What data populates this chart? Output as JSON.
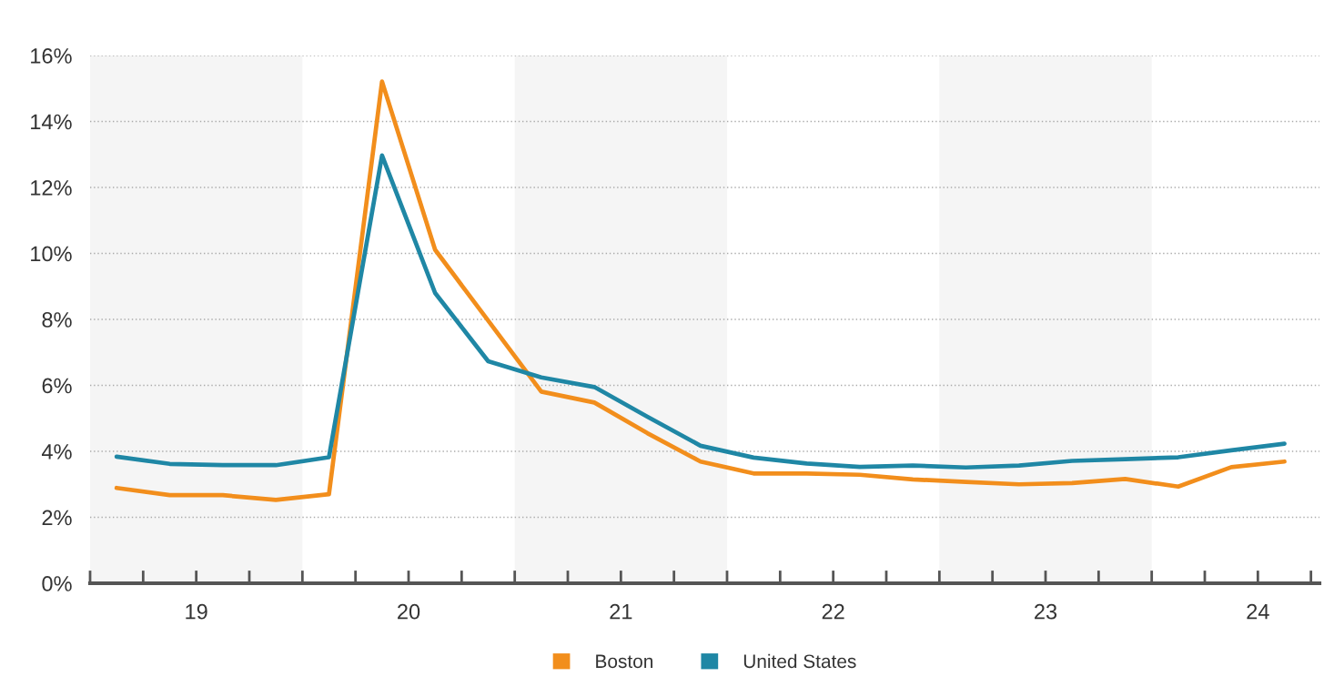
{
  "chart_data": {
    "type": "line",
    "x": [
      18.625,
      18.875,
      19.125,
      19.375,
      19.625,
      19.875,
      20.125,
      20.375,
      20.625,
      20.875,
      21.125,
      21.375,
      21.625,
      21.875,
      22.125,
      22.375,
      22.625,
      22.875,
      23.125,
      23.375,
      23.625,
      23.875,
      24.125
    ],
    "series": [
      {
        "name": "Boston",
        "color": "#f28e1c",
        "values": [
          2.89,
          2.67,
          2.67,
          2.53,
          2.7,
          15.21,
          10.11,
          7.96,
          5.81,
          5.48,
          4.55,
          3.69,
          3.33,
          3.33,
          3.29,
          3.15,
          3.07,
          3.0,
          3.04,
          3.16,
          2.93,
          3.52,
          3.69
        ]
      },
      {
        "name": "United States",
        "color": "#1f87a5",
        "values": [
          3.84,
          3.62,
          3.58,
          3.58,
          3.82,
          12.97,
          8.8,
          6.73,
          6.24,
          5.95,
          5.05,
          4.17,
          3.81,
          3.63,
          3.53,
          3.57,
          3.51,
          3.57,
          3.71,
          3.76,
          3.82,
          4.03,
          4.23
        ]
      }
    ],
    "xlim": [
      18.5,
      24.29
    ],
    "xticks": [
      {
        "value": 18.5,
        "label": null
      },
      {
        "value": 18.75,
        "label": null
      },
      19,
      {
        "value": 19.25,
        "label": null
      },
      {
        "value": 19.5,
        "label": null
      },
      {
        "value": 19.75,
        "label": null
      },
      20,
      {
        "value": 20.25,
        "label": null
      },
      {
        "value": 20.5,
        "label": null
      },
      {
        "value": 20.75,
        "label": null
      },
      21,
      {
        "value": 21.25,
        "label": null
      },
      {
        "value": 21.5,
        "label": null
      },
      {
        "value": 21.75,
        "label": null
      },
      22,
      {
        "value": 22.25,
        "label": null
      },
      {
        "value": 22.5,
        "label": null
      },
      {
        "value": 22.75,
        "label": null
      },
      23,
      {
        "value": 23.25,
        "label": null
      },
      {
        "value": 23.5,
        "label": null
      },
      {
        "value": 23.75,
        "label": null
      },
      24,
      {
        "value": 24.25,
        "label": null
      }
    ],
    "ylim": [
      0,
      16
    ],
    "yticks": [
      {
        "value": 0,
        "label": "0%"
      },
      {
        "value": 2,
        "label": "2%"
      },
      {
        "value": 4,
        "label": "4%"
      },
      {
        "value": 6,
        "label": "6%"
      },
      {
        "value": 8,
        "label": "8%"
      },
      {
        "value": 10,
        "label": "10%"
      },
      {
        "value": 12,
        "label": "12%"
      },
      {
        "value": 14,
        "label": "14%"
      },
      {
        "value": 16,
        "label": "16%"
      }
    ],
    "bands": [
      {
        "axis": "x",
        "from": 18.5,
        "to": 19.5,
        "color": "#f5f5f5"
      },
      {
        "axis": "x",
        "from": 20.5,
        "to": 21.5,
        "color": "#f5f5f5"
      },
      {
        "axis": "x",
        "from": 22.5,
        "to": 23.5,
        "color": "#f5f5f5"
      }
    ],
    "grid": "y",
    "legend": "bottom",
    "marker": "none",
    "line_style": "solid"
  }
}
